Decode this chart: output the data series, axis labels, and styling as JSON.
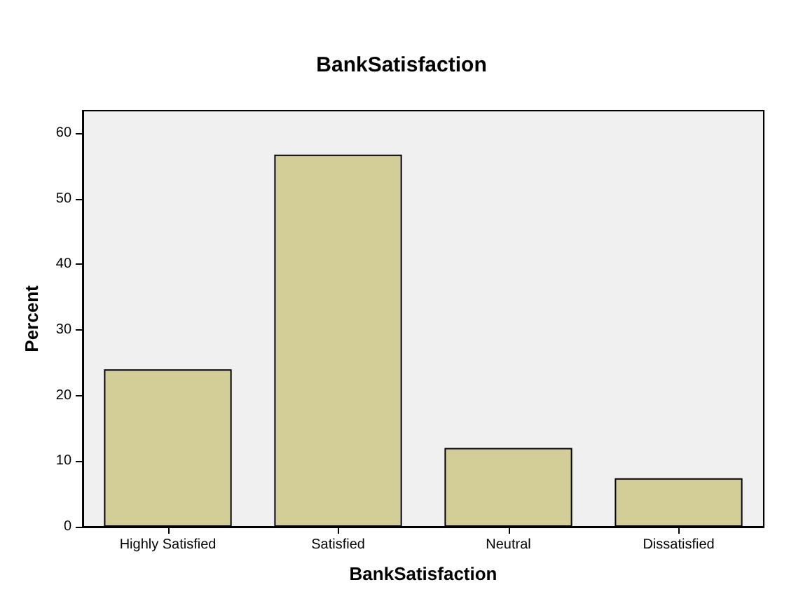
{
  "chart_data": {
    "type": "bar",
    "title": "BankSatisfaction",
    "xlabel": "BankSatisfaction",
    "ylabel": "Percent",
    "categories": [
      "Highly Satisfied",
      "Satisfied",
      "Neutral",
      "Dissatisfied"
    ],
    "values": [
      24,
      56.7,
      12,
      7.4
    ],
    "color": "#d3ce98",
    "ylim": [
      0,
      63.4
    ],
    "yticks": [
      0,
      10,
      20,
      30,
      40,
      50,
      60
    ],
    "grid": false
  }
}
